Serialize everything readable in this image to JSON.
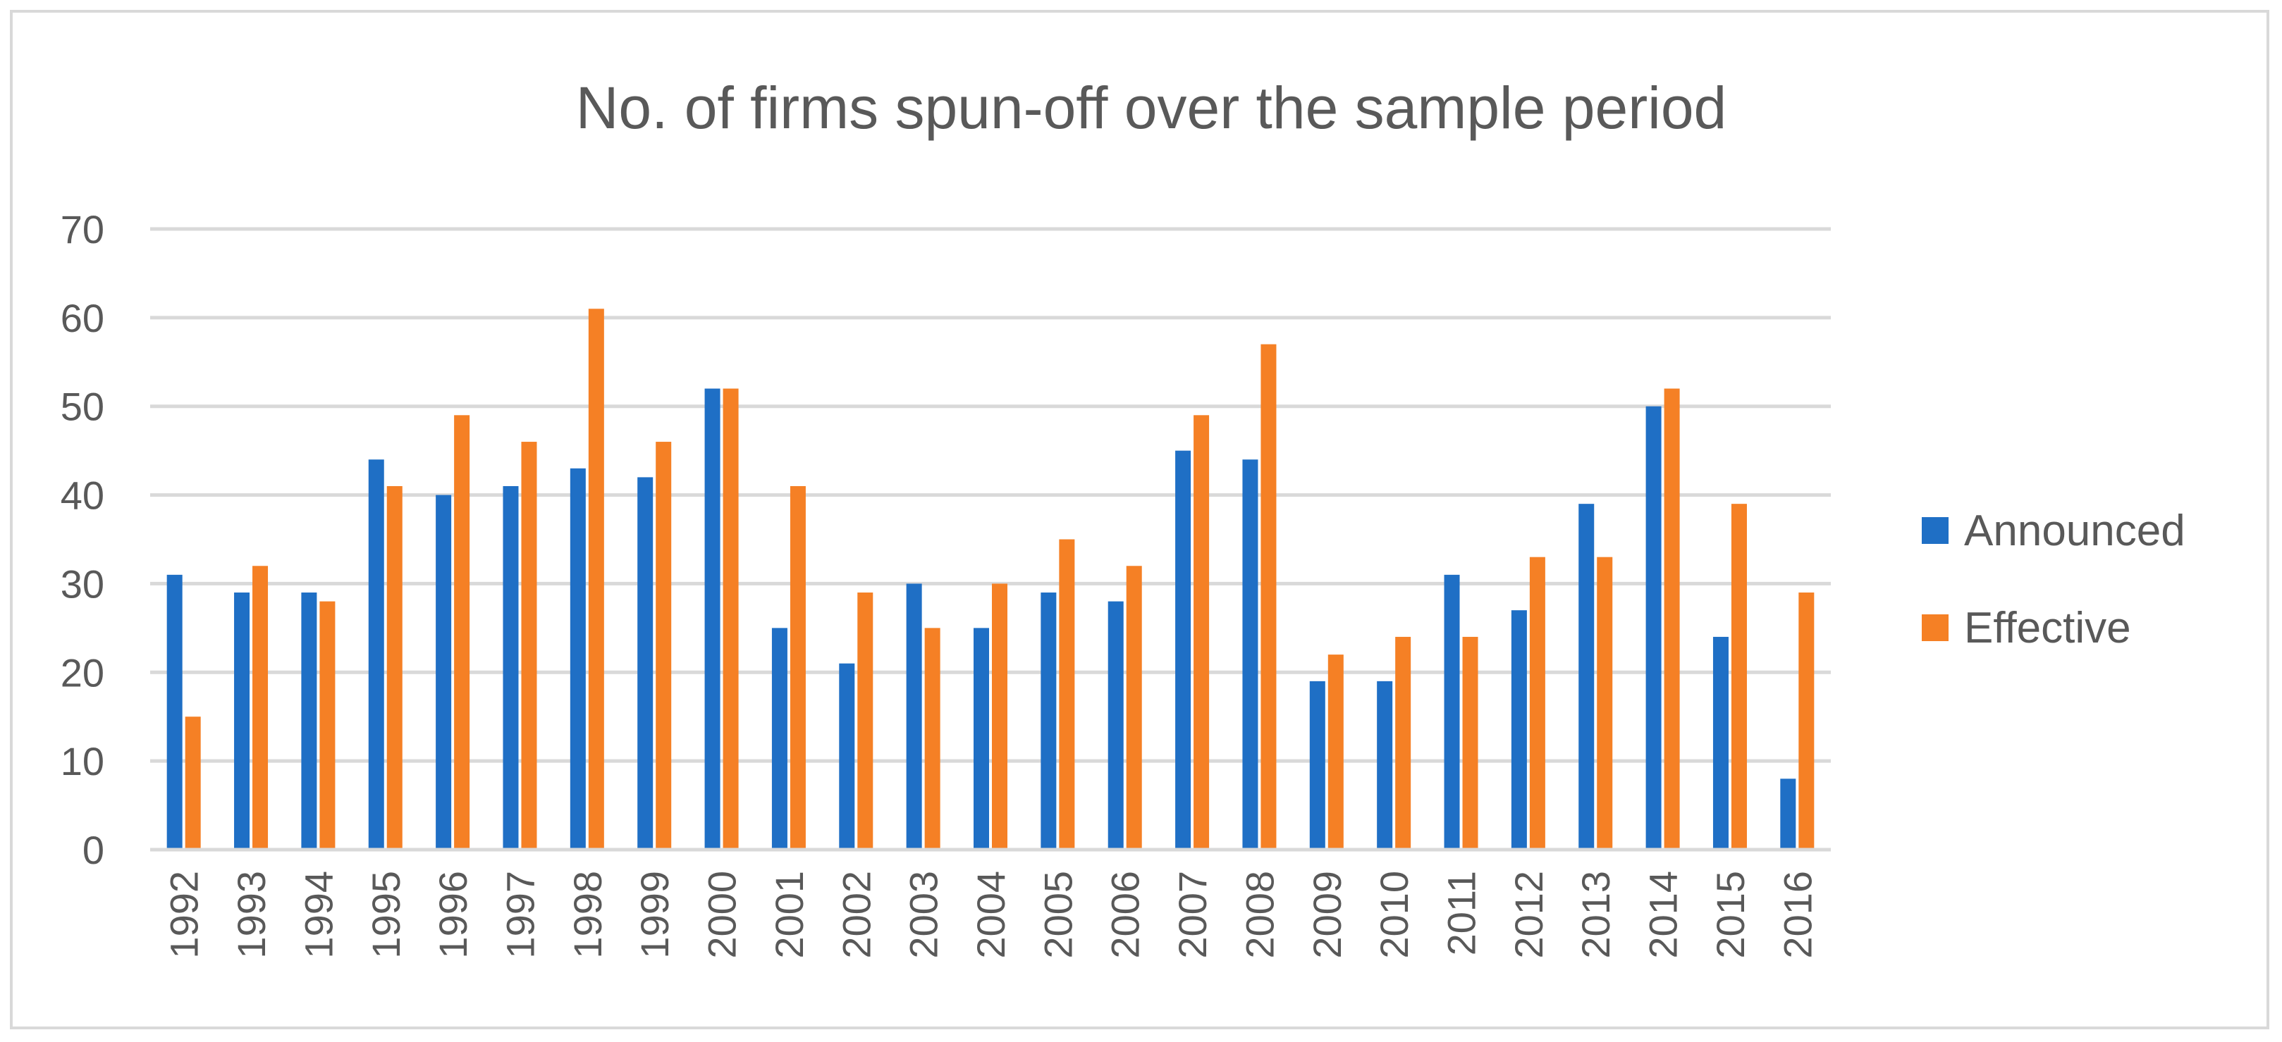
{
  "chart_data": {
    "type": "bar",
    "title": "No. of firms spun-off over the sample period",
    "xlabel": "",
    "ylabel": "",
    "ylim": [
      0,
      70
    ],
    "yticks": [
      0,
      10,
      20,
      30,
      40,
      50,
      60,
      70
    ],
    "grid": true,
    "legend_position": "right",
    "categories": [
      "1992",
      "1993",
      "1994",
      "1995",
      "1996",
      "1997",
      "1998",
      "1999",
      "2000",
      "2001",
      "2002",
      "2003",
      "2004",
      "2005",
      "2006",
      "2007",
      "2008",
      "2009",
      "2010",
      "2011",
      "2012",
      "2013",
      "2014",
      "2015",
      "2016"
    ],
    "series": [
      {
        "name": "Announced",
        "color": "#1f6fc5",
        "values": [
          31,
          29,
          29,
          44,
          40,
          41,
          43,
          42,
          52,
          25,
          21,
          30,
          25,
          29,
          28,
          45,
          44,
          19,
          19,
          31,
          27,
          39,
          50,
          24,
          8
        ]
      },
      {
        "name": "Effective",
        "color": "#f58025",
        "values": [
          15,
          32,
          28,
          41,
          49,
          46,
          61,
          46,
          52,
          41,
          29,
          25,
          30,
          35,
          32,
          49,
          57,
          22,
          24,
          24,
          33,
          33,
          52,
          39,
          29
        ]
      }
    ]
  }
}
